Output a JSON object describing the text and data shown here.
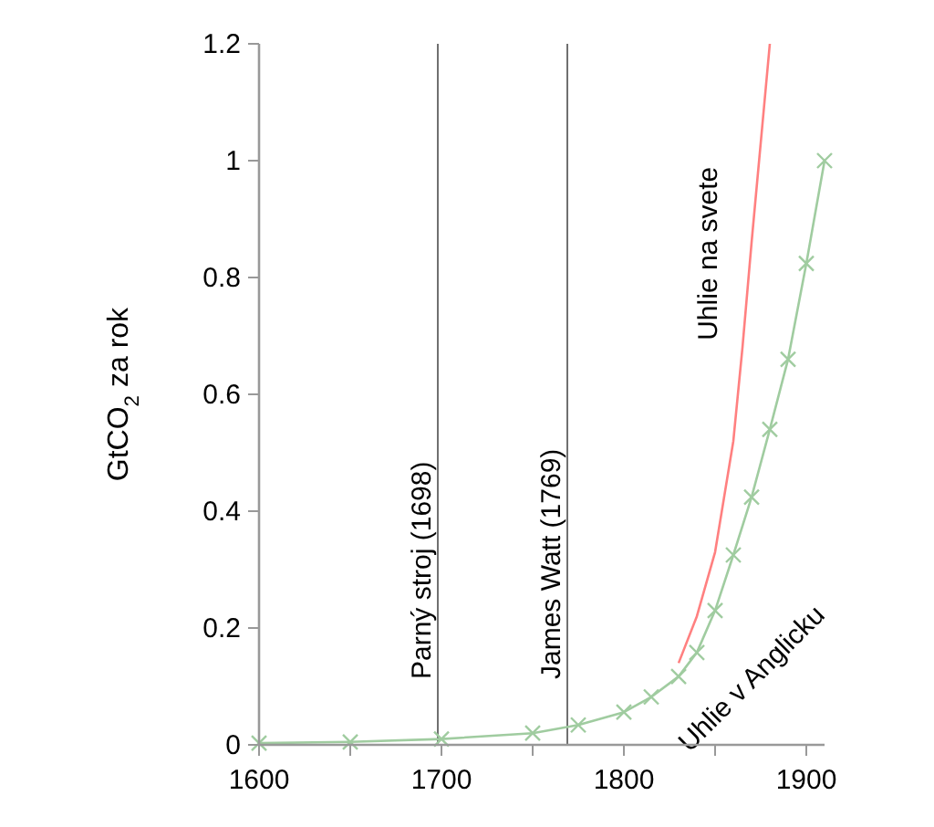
{
  "chart_data": {
    "type": "line",
    "ylabel": "GtCO$_{2}$ za rok",
    "xlim": [
      1600,
      1910
    ],
    "ylim": [
      0,
      1.2
    ],
    "xticks": [
      1600,
      {
        "value": 1650,
        "label": null
      },
      1700,
      {
        "value": 1750,
        "label": null
      },
      1800,
      {
        "value": 1850,
        "label": null
      },
      1900
    ],
    "yticks": [
      0,
      0.2,
      0.4,
      0.6,
      0.8,
      1,
      1.2
    ],
    "grid": false,
    "series": [
      {
        "name": "Uhlie v Anglicku",
        "color": "#a0cca0",
        "marker": "cross",
        "x": [
          1600,
          1650,
          1700,
          1750,
          1775,
          1800,
          1815,
          1830,
          1840,
          1850,
          1860,
          1870,
          1880,
          1890,
          1900,
          1910
        ],
        "values": [
          0.003,
          0.005,
          0.01,
          0.02,
          0.034,
          0.056,
          0.082,
          0.117,
          0.158,
          0.23,
          0.325,
          0.424,
          0.54,
          0.66,
          0.824,
          1.0
        ]
      },
      {
        "name": "Uhlie na svete",
        "color": "#ff8080",
        "marker": "none",
        "x": [
          1830,
          1840,
          1850,
          1860,
          1865,
          1870,
          1875,
          1880
        ],
        "values": [
          0.14,
          0.22,
          0.33,
          0.52,
          0.68,
          0.86,
          1.03,
          1.2
        ]
      }
    ],
    "ref_lines": [
      {
        "axis": "x",
        "value": 1698,
        "label": "Parný stroj (1698)",
        "color": "#707070"
      },
      {
        "axis": "x",
        "value": 1769,
        "label": "James Watt (1769)",
        "color": "#707070"
      }
    ]
  }
}
